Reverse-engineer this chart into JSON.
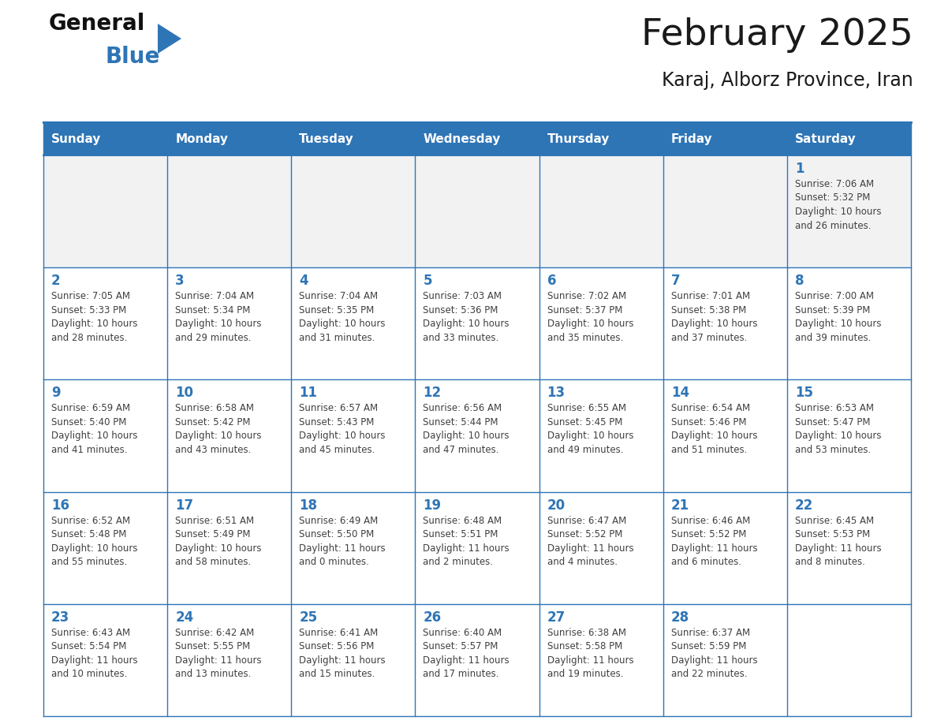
{
  "title": "February 2025",
  "subtitle": "Karaj, Alborz Province, Iran",
  "days_of_week": [
    "Sunday",
    "Monday",
    "Tuesday",
    "Wednesday",
    "Thursday",
    "Friday",
    "Saturday"
  ],
  "header_bg": "#2E75B6",
  "header_text": "#FFFFFF",
  "cell_bg_white": "#FFFFFF",
  "cell_bg_gray": "#F2F2F2",
  "cell_border": "#2E75B6",
  "day_number_color": "#2E75B6",
  "info_text_color": "#404040",
  "title_color": "#1a1a1a",
  "logo_general_color": "#111111",
  "logo_blue_color": "#2E75B6",
  "calendar_data": [
    [
      null,
      null,
      null,
      null,
      null,
      null,
      1
    ],
    [
      2,
      3,
      4,
      5,
      6,
      7,
      8
    ],
    [
      9,
      10,
      11,
      12,
      13,
      14,
      15
    ],
    [
      16,
      17,
      18,
      19,
      20,
      21,
      22
    ],
    [
      23,
      24,
      25,
      26,
      27,
      28,
      null
    ]
  ],
  "sunrise_data": {
    "1": "7:06 AM",
    "2": "7:05 AM",
    "3": "7:04 AM",
    "4": "7:04 AM",
    "5": "7:03 AM",
    "6": "7:02 AM",
    "7": "7:01 AM",
    "8": "7:00 AM",
    "9": "6:59 AM",
    "10": "6:58 AM",
    "11": "6:57 AM",
    "12": "6:56 AM",
    "13": "6:55 AM",
    "14": "6:54 AM",
    "15": "6:53 AM",
    "16": "6:52 AM",
    "17": "6:51 AM",
    "18": "6:49 AM",
    "19": "6:48 AM",
    "20": "6:47 AM",
    "21": "6:46 AM",
    "22": "6:45 AM",
    "23": "6:43 AM",
    "24": "6:42 AM",
    "25": "6:41 AM",
    "26": "6:40 AM",
    "27": "6:38 AM",
    "28": "6:37 AM"
  },
  "sunset_data": {
    "1": "5:32 PM",
    "2": "5:33 PM",
    "3": "5:34 PM",
    "4": "5:35 PM",
    "5": "5:36 PM",
    "6": "5:37 PM",
    "7": "5:38 PM",
    "8": "5:39 PM",
    "9": "5:40 PM",
    "10": "5:42 PM",
    "11": "5:43 PM",
    "12": "5:44 PM",
    "13": "5:45 PM",
    "14": "5:46 PM",
    "15": "5:47 PM",
    "16": "5:48 PM",
    "17": "5:49 PM",
    "18": "5:50 PM",
    "19": "5:51 PM",
    "20": "5:52 PM",
    "21": "5:52 PM",
    "22": "5:53 PM",
    "23": "5:54 PM",
    "24": "5:55 PM",
    "25": "5:56 PM",
    "26": "5:57 PM",
    "27": "5:58 PM",
    "28": "5:59 PM"
  },
  "daylight_line1": {
    "1": "Daylight: 10 hours",
    "2": "Daylight: 10 hours",
    "3": "Daylight: 10 hours",
    "4": "Daylight: 10 hours",
    "5": "Daylight: 10 hours",
    "6": "Daylight: 10 hours",
    "7": "Daylight: 10 hours",
    "8": "Daylight: 10 hours",
    "9": "Daylight: 10 hours",
    "10": "Daylight: 10 hours",
    "11": "Daylight: 10 hours",
    "12": "Daylight: 10 hours",
    "13": "Daylight: 10 hours",
    "14": "Daylight: 10 hours",
    "15": "Daylight: 10 hours",
    "16": "Daylight: 10 hours",
    "17": "Daylight: 10 hours",
    "18": "Daylight: 11 hours",
    "19": "Daylight: 11 hours",
    "20": "Daylight: 11 hours",
    "21": "Daylight: 11 hours",
    "22": "Daylight: 11 hours",
    "23": "Daylight: 11 hours",
    "24": "Daylight: 11 hours",
    "25": "Daylight: 11 hours",
    "26": "Daylight: 11 hours",
    "27": "Daylight: 11 hours",
    "28": "Daylight: 11 hours"
  },
  "daylight_line2": {
    "1": "and 26 minutes.",
    "2": "and 28 minutes.",
    "3": "and 29 minutes.",
    "4": "and 31 minutes.",
    "5": "and 33 minutes.",
    "6": "and 35 minutes.",
    "7": "and 37 minutes.",
    "8": "and 39 minutes.",
    "9": "and 41 minutes.",
    "10": "and 43 minutes.",
    "11": "and 45 minutes.",
    "12": "and 47 minutes.",
    "13": "and 49 minutes.",
    "14": "and 51 minutes.",
    "15": "and 53 minutes.",
    "16": "and 55 minutes.",
    "17": "and 58 minutes.",
    "18": "and 0 minutes.",
    "19": "and 2 minutes.",
    "20": "and 4 minutes.",
    "21": "and 6 minutes.",
    "22": "and 8 minutes.",
    "23": "and 10 minutes.",
    "24": "and 13 minutes.",
    "25": "and 15 minutes.",
    "26": "and 17 minutes.",
    "27": "and 19 minutes.",
    "28": "and 22 minutes."
  }
}
